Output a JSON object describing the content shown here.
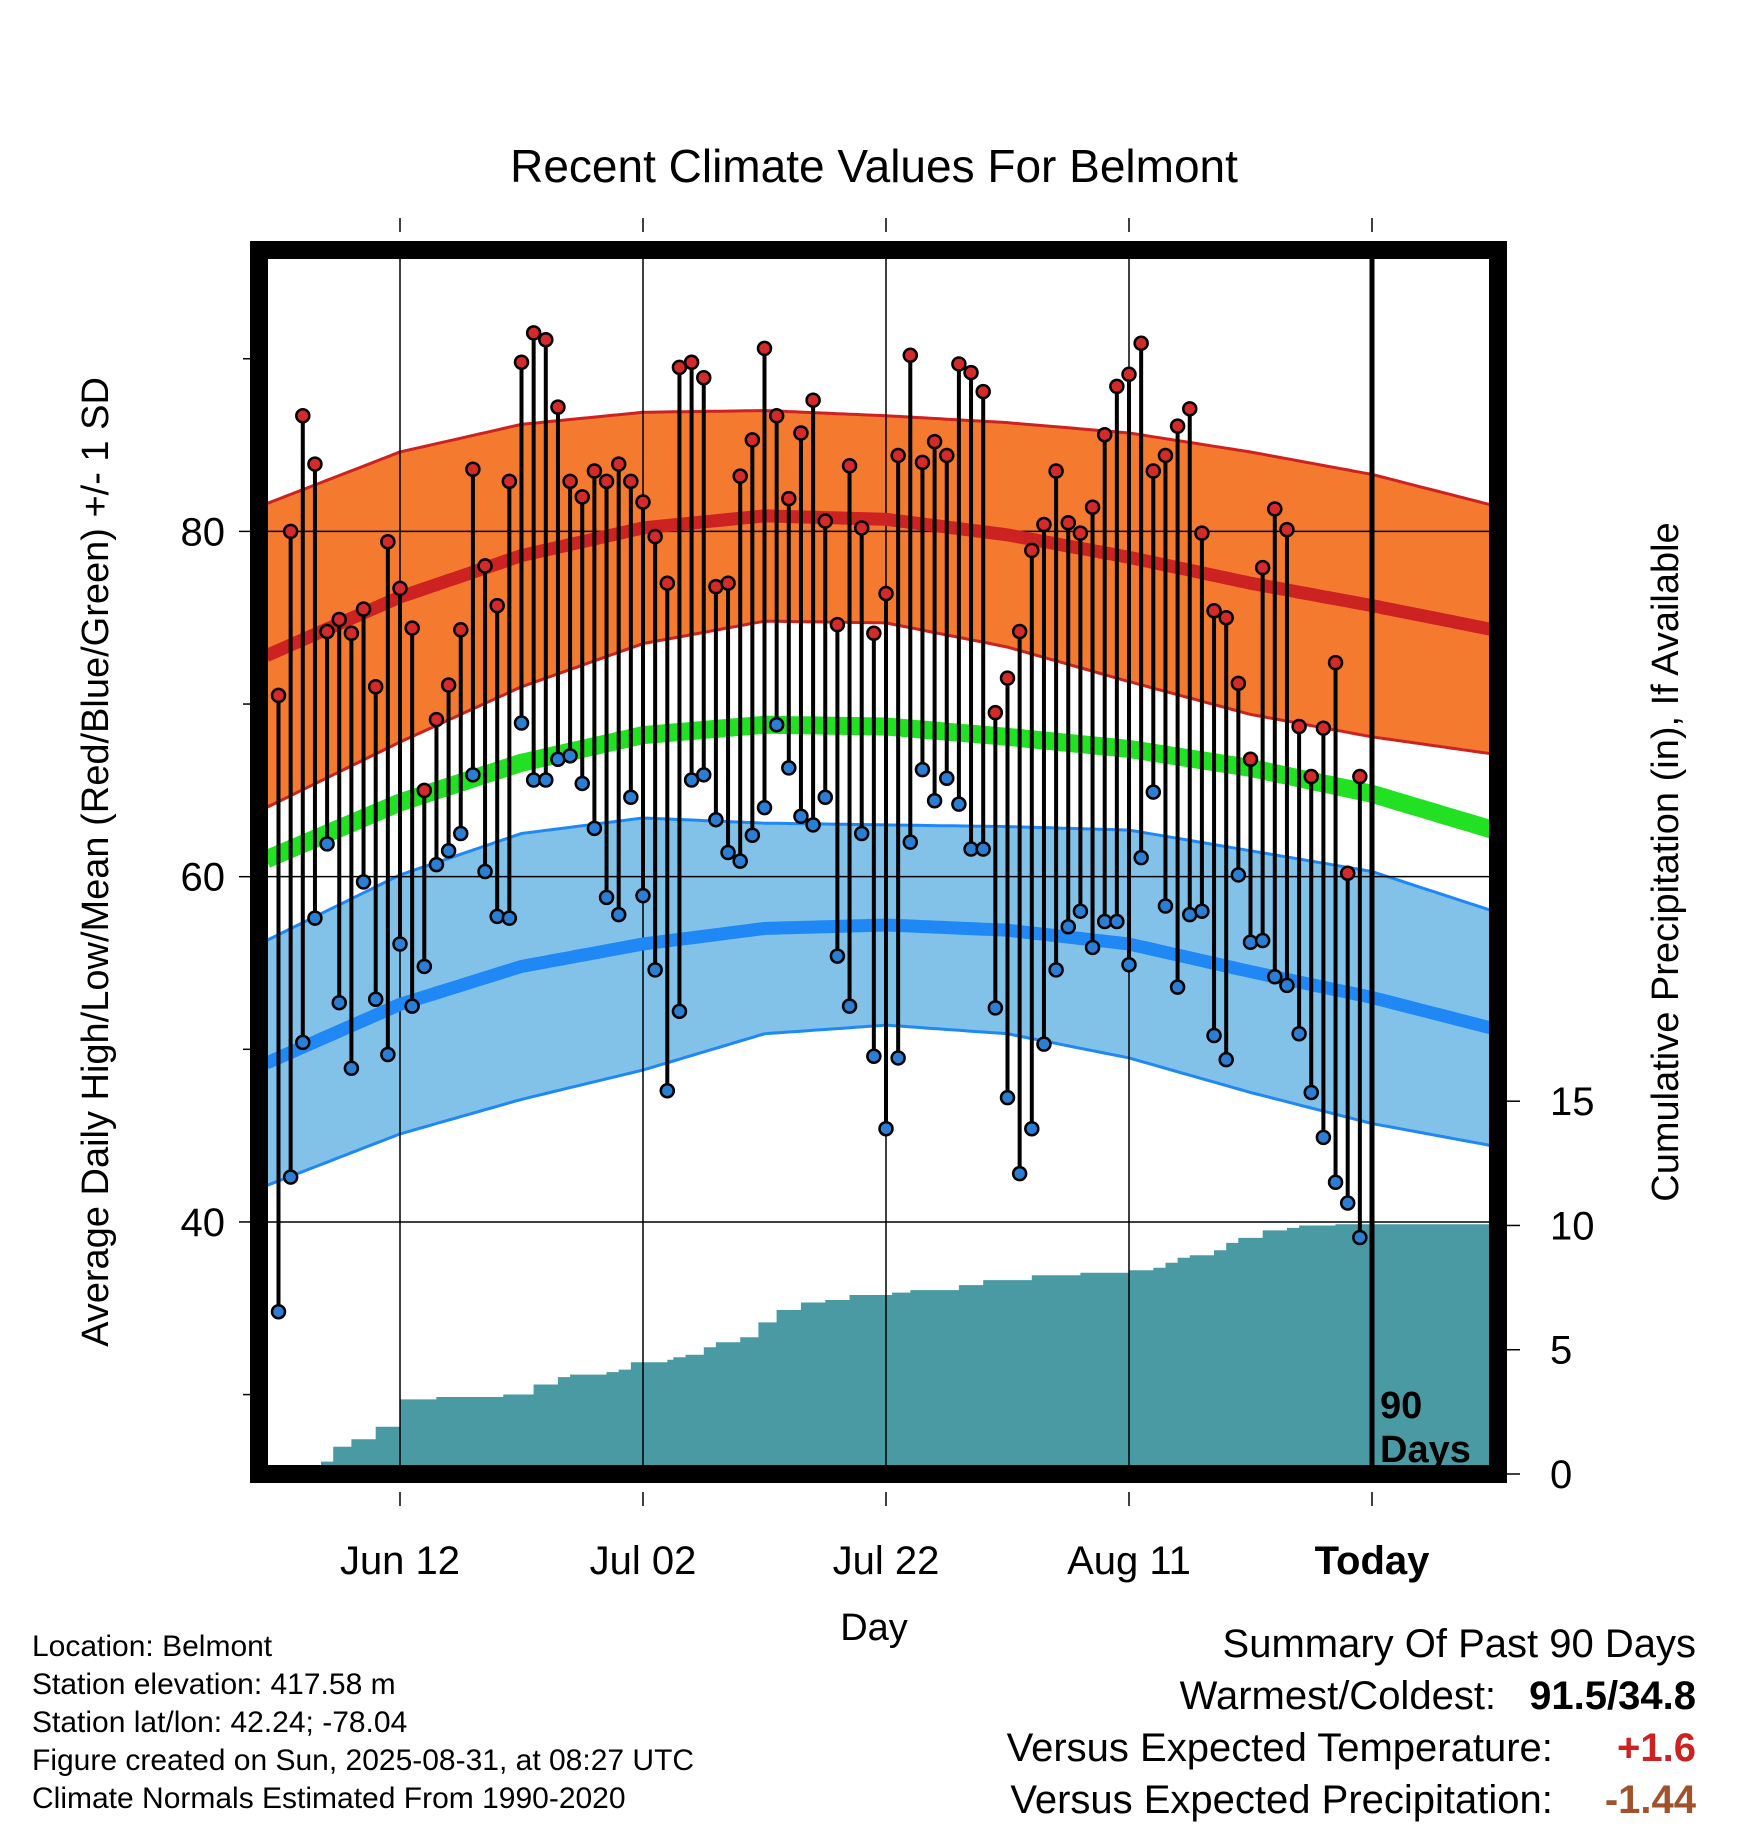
{
  "title": "Recent Climate Values For Belmont",
  "y_left_label": "Average Daily High/Low/Mean (Red/Blue/Green) +/- 1 SD",
  "y_right_label": "Cumulative Precipitation (in), If Available",
  "x_label": "Day",
  "window_label_line1": "90",
  "window_label_line2": "Days",
  "info": {
    "location": "Location: Belmont",
    "elevation": "Station elevation: 417.58 m",
    "latlon": "Station lat/lon: 42.24; -78.04",
    "created": "Figure created on Sun, 2025-08-31, at 08:27 UTC",
    "normals": "Climate Normals Estimated From 1990-2020"
  },
  "summary": {
    "heading": "Summary Of Past 90 Days",
    "warmest_label": "Warmest/Coldest:",
    "warmest_value": "91.5/34.8",
    "temp_label": "Versus Expected Temperature:",
    "temp_value": "+1.6",
    "temp_color": "#cc2222",
    "precip_label": "Versus Expected Precipitation:",
    "precip_value": "-1.44",
    "precip_color": "#a0522d"
  },
  "colors": {
    "high_band": "#f47a30",
    "high_line": "#cc2222",
    "low_band": "#82c2e8",
    "low_line": "#1f88f5",
    "mean_line": "#22e022",
    "precip_fill": "#4a9aa4",
    "high_dot": "#d42a2a",
    "low_dot": "#2a7fd4"
  },
  "chart_data": {
    "type": "line",
    "x_days": [
      -91,
      10
    ],
    "x_ticks": [
      {
        "day": -80,
        "label": "Jun 12"
      },
      {
        "day": -60,
        "label": "Jul 02"
      },
      {
        "day": -40,
        "label": "Jul 22"
      },
      {
        "day": -20,
        "label": "Aug 11"
      },
      {
        "day": 0,
        "label": "Today"
      }
    ],
    "y_left_range": [
      25.4,
      96.3
    ],
    "y_left_ticks": [
      40,
      60,
      80
    ],
    "y_left_minor_ticks": [
      30,
      50,
      70,
      90
    ],
    "y_right_ticks": [
      0,
      5,
      10,
      15
    ],
    "y_right_range": [
      0,
      10.3
    ],
    "normals_days": [
      -91,
      -80,
      -70,
      -60,
      -50,
      -40,
      -30,
      -20,
      -10,
      0,
      10
    ],
    "normal_high": [
      72.8,
      76.2,
      78.6,
      80.2,
      80.9,
      80.7,
      79.8,
      78.5,
      77.0,
      75.7,
      74.3
    ],
    "normal_high_sd": [
      8.8,
      8.4,
      7.6,
      6.7,
      6.1,
      6.0,
      6.5,
      7.2,
      7.6,
      7.6,
      7.2
    ],
    "normal_mean": [
      61.0,
      64.3,
      66.6,
      68.2,
      68.8,
      68.7,
      68.1,
      67.4,
      66.3,
      64.8,
      62.7
    ],
    "normal_low": [
      49.2,
      52.6,
      54.8,
      56.1,
      57.0,
      57.2,
      56.9,
      56.1,
      54.5,
      53.0,
      51.2
    ],
    "normal_low_sd": [
      7.1,
      7.5,
      7.7,
      7.3,
      6.1,
      5.8,
      6.0,
      6.6,
      7.0,
      7.3,
      6.8
    ],
    "daily_high": [
      70.5,
      80.0,
      86.7,
      83.9,
      74.2,
      74.9,
      74.1,
      75.5,
      71.0,
      79.4,
      76.7,
      74.4,
      65.0,
      69.1,
      71.1,
      74.3,
      83.6,
      78.0,
      75.7,
      82.9,
      89.8,
      91.5,
      91.1,
      87.2,
      82.9,
      82.0,
      83.5,
      82.9,
      83.9,
      82.9,
      81.7,
      79.7,
      77.0,
      89.5,
      89.8,
      88.9,
      76.8,
      77.0,
      83.2,
      85.3,
      90.6,
      86.7,
      81.9,
      85.7,
      87.6,
      80.6,
      74.6,
      83.8,
      80.2,
      74.1,
      76.4,
      84.4,
      90.2,
      84.0,
      85.2,
      84.4,
      89.7,
      89.2,
      88.1,
      69.5,
      71.5,
      74.2,
      78.9,
      80.4,
      83.5,
      80.5,
      79.9,
      81.4,
      85.6,
      88.4,
      89.1,
      90.9,
      83.5,
      84.4,
      86.1,
      87.1,
      79.9,
      75.4,
      75.0,
      71.2,
      66.8,
      77.9,
      81.3,
      80.1,
      68.7,
      65.8,
      68.6,
      72.4,
      60.2,
      65.8
    ],
    "daily_low": [
      34.8,
      42.6,
      50.4,
      57.6,
      61.9,
      52.7,
      48.9,
      59.7,
      52.9,
      49.7,
      56.1,
      52.5,
      54.8,
      60.7,
      61.5,
      62.5,
      65.9,
      60.3,
      57.7,
      57.6,
      68.9,
      65.6,
      65.6,
      66.8,
      67.0,
      65.4,
      62.8,
      58.8,
      57.8,
      64.6,
      58.9,
      54.6,
      47.6,
      52.2,
      65.6,
      65.9,
      63.3,
      61.4,
      60.9,
      62.4,
      64.0,
      68.8,
      66.3,
      63.5,
      63.0,
      64.6,
      55.4,
      52.5,
      62.5,
      49.6,
      45.4,
      49.5,
      62.0,
      66.2,
      64.4,
      65.7,
      64.2,
      61.6,
      61.6,
      52.4,
      47.2,
      42.8,
      45.4,
      50.3,
      54.6,
      57.1,
      58.0,
      55.9,
      57.4,
      57.4,
      54.9,
      61.1,
      64.9,
      58.3,
      53.6,
      57.8,
      58.0,
      50.8,
      49.4,
      60.1,
      56.2,
      56.3,
      54.2,
      53.7,
      50.9,
      47.5,
      44.9,
      42.3,
      41.1,
      39.1
    ],
    "precip_days": [
      -91,
      -87.5,
      -86.5,
      -85.5,
      -84,
      -82,
      -80,
      -78,
      -77,
      -76,
      -74,
      -73,
      -71.5,
      -69,
      -67,
      -66,
      -65,
      -63,
      -62,
      -61,
      -58,
      -57.5,
      -56.5,
      -55,
      -54,
      -52,
      -50.5,
      -49,
      -47,
      -45,
      -43,
      -41,
      -39.5,
      -38,
      -36,
      -34,
      -32,
      -30,
      -28,
      -26,
      -24,
      -22,
      -20,
      -19,
      -18,
      -17,
      -16,
      -15,
      -13,
      -12,
      -11,
      -9,
      -7,
      -6,
      -5,
      -3,
      -1,
      0,
      10
    ],
    "precip_cum": [
      0,
      0,
      0.5,
      1.1,
      1.4,
      1.9,
      3.0,
      3.0,
      3.1,
      3.1,
      3.1,
      3.1,
      3.2,
      3.6,
      3.9,
      4.0,
      4.0,
      4.1,
      4.2,
      4.5,
      4.6,
      4.7,
      4.8,
      5.1,
      5.3,
      5.5,
      6.1,
      6.6,
      6.9,
      7.0,
      7.2,
      7.2,
      7.3,
      7.4,
      7.4,
      7.6,
      7.8,
      7.8,
      8.0,
      8.0,
      8.1,
      8.1,
      8.2,
      8.2,
      8.3,
      8.5,
      8.7,
      8.8,
      9.0,
      9.3,
      9.5,
      9.8,
      9.9,
      10.0,
      10.0,
      10.05,
      10.05,
      10.05,
      10.05
    ]
  }
}
